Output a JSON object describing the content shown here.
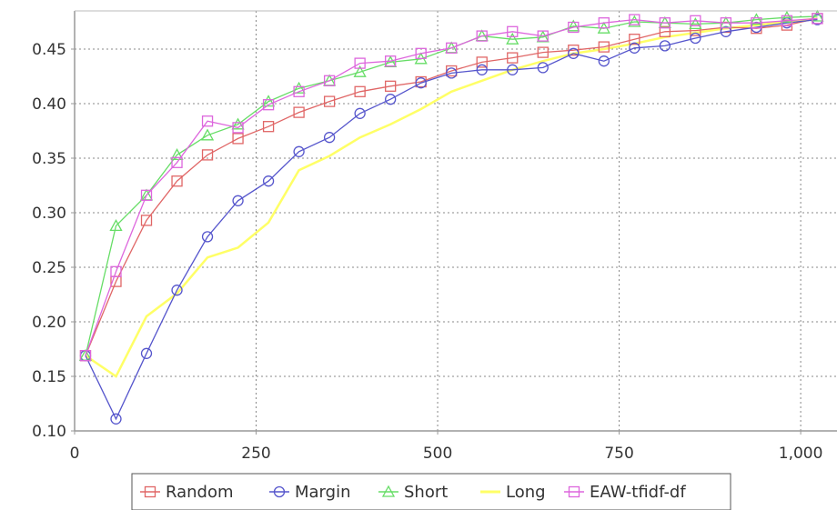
{
  "chart_data": {
    "type": "line",
    "title": "",
    "xlabel": "",
    "ylabel": "",
    "xlim": [
      0,
      1050
    ],
    "ylim": [
      0.1,
      0.485
    ],
    "x_ticks": [
      0,
      250,
      500,
      750,
      1000
    ],
    "x_tick_labels": [
      "0",
      "250",
      "500",
      "750",
      "1,000"
    ],
    "y_ticks": [
      0.1,
      0.15,
      0.2,
      0.25,
      0.3,
      0.35,
      0.4,
      0.45
    ],
    "y_tick_labels": [
      "0.10",
      "0.15",
      "0.20",
      "0.25",
      "0.30",
      "0.35",
      "0.40",
      "0.45"
    ],
    "grid": true,
    "legend_position": "bottom",
    "x": [
      15,
      57,
      99,
      141,
      183,
      225,
      267,
      309,
      351,
      393,
      435,
      477,
      519,
      561,
      603,
      645,
      687,
      729,
      771,
      813,
      855,
      897,
      939,
      981,
      1023
    ],
    "series": [
      {
        "name": "Random",
        "color": "#e06666",
        "marker": "square",
        "values": [
          0.169,
          0.237,
          0.293,
          0.329,
          0.353,
          0.368,
          0.379,
          0.392,
          0.402,
          0.411,
          0.416,
          0.42,
          0.43,
          0.438,
          0.442,
          0.447,
          0.449,
          0.452,
          0.459,
          0.466,
          0.467,
          0.47,
          0.469,
          0.472,
          0.478
        ]
      },
      {
        "name": "Margin",
        "color": "#5555cc",
        "marker": "circle",
        "values": [
          0.169,
          0.111,
          0.171,
          0.229,
          0.278,
          0.311,
          0.329,
          0.356,
          0.369,
          0.391,
          0.404,
          0.419,
          0.428,
          0.431,
          0.431,
          0.433,
          0.446,
          0.439,
          0.451,
          0.453,
          0.46,
          0.466,
          0.47,
          0.474,
          0.477
        ]
      },
      {
        "name": "Short",
        "color": "#66dd66",
        "marker": "triangle",
        "values": [
          0.169,
          0.288,
          0.316,
          0.353,
          0.371,
          0.381,
          0.402,
          0.414,
          0.421,
          0.429,
          0.438,
          0.441,
          0.451,
          0.462,
          0.459,
          0.461,
          0.471,
          0.469,
          0.475,
          0.474,
          0.473,
          0.474,
          0.477,
          0.479,
          0.48
        ]
      },
      {
        "name": "Long",
        "color": "#ffff66",
        "marker": "none",
        "values": [
          0.169,
          0.15,
          0.205,
          0.226,
          0.259,
          0.268,
          0.291,
          0.339,
          0.352,
          0.369,
          0.381,
          0.395,
          0.411,
          0.421,
          0.431,
          0.439,
          0.446,
          0.45,
          0.455,
          0.461,
          0.465,
          0.469,
          0.472,
          0.475,
          0.478
        ]
      },
      {
        "name": "EAW-tfidf-df",
        "color": "#dd66dd",
        "marker": "square",
        "values": [
          0.169,
          0.246,
          0.316,
          0.346,
          0.384,
          0.378,
          0.399,
          0.411,
          0.421,
          0.437,
          0.439,
          0.446,
          0.451,
          0.462,
          0.466,
          0.462,
          0.47,
          0.474,
          0.477,
          0.474,
          0.476,
          0.474,
          0.474,
          0.476,
          0.478
        ]
      }
    ]
  }
}
